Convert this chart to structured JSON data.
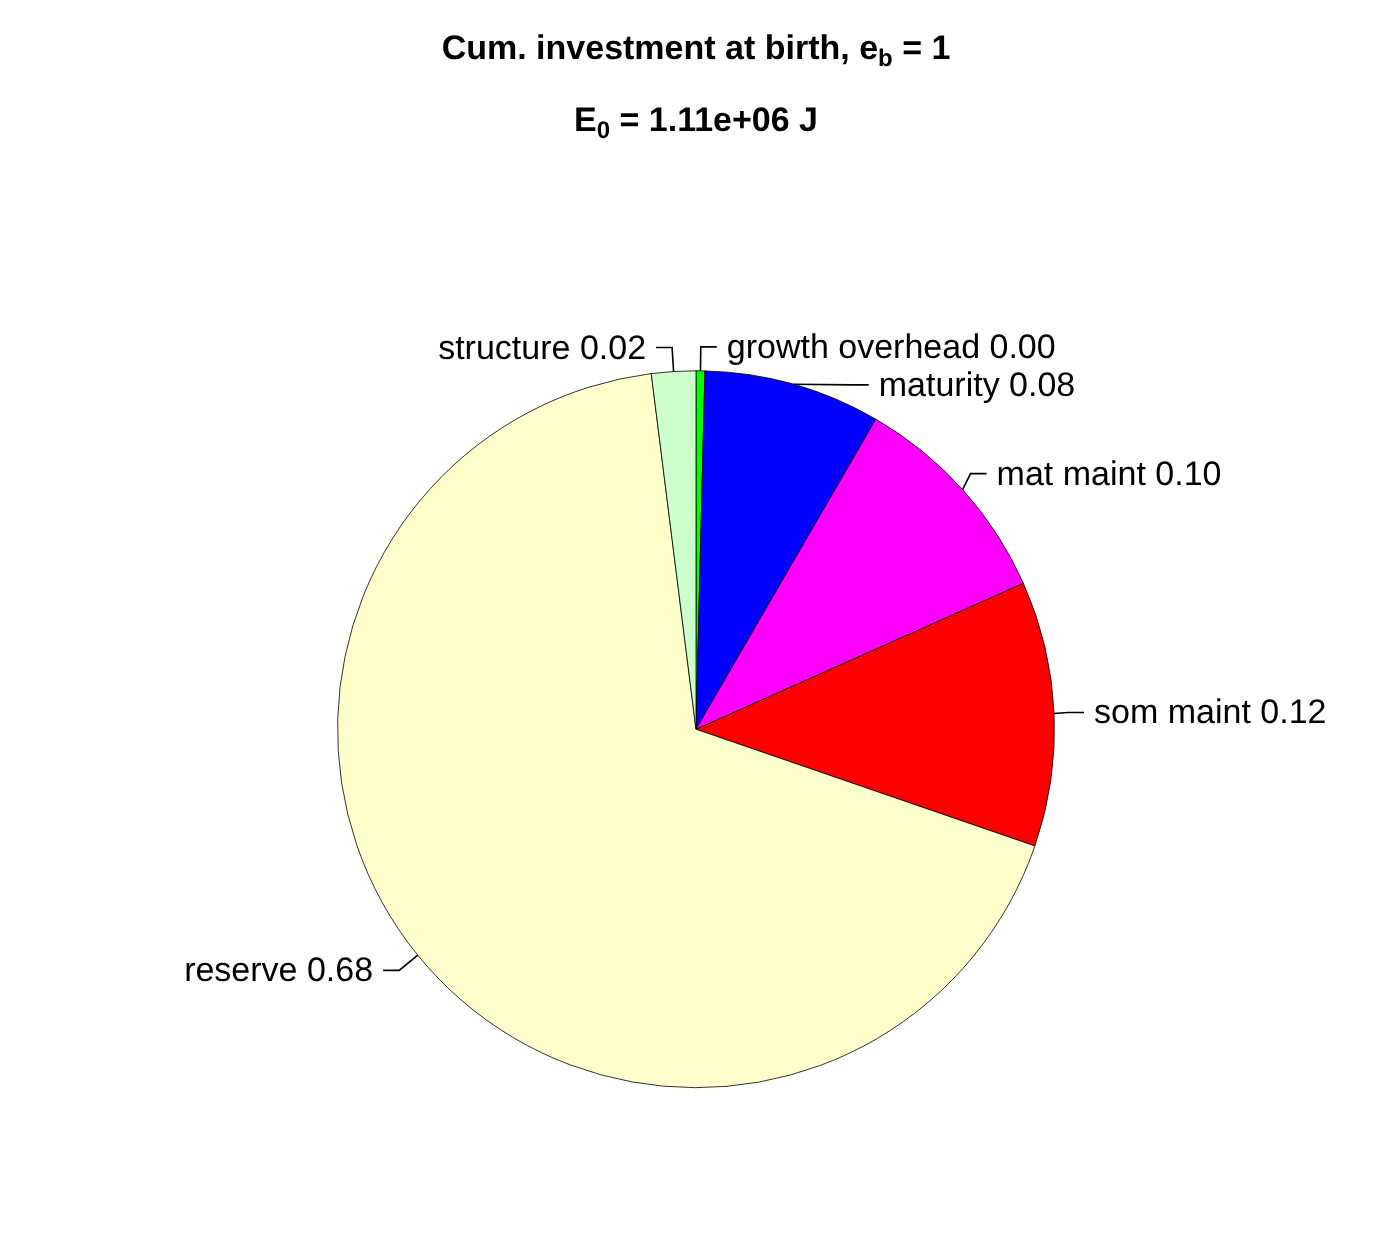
{
  "chart_data": {
    "type": "pie",
    "title": "Cum. investment at birth, e$_{b}$ = 1",
    "subtitle": "E$_{0}$ = 1.11e+06 J",
    "categories": [
      "growth overhead",
      "maturity",
      "mat maint",
      "som maint",
      "reserve",
      "structure"
    ],
    "values": [
      0.004,
      0.08,
      0.1,
      0.12,
      0.68,
      0.02
    ],
    "value_labels": [
      "0.00",
      "0.08",
      "0.10",
      "0.12",
      "0.68",
      "0.02"
    ],
    "colors": [
      "#00ff00",
      "#0000ff",
      "#ff00ff",
      "#ff0000",
      "#ffffcc",
      "#ccffcc"
    ],
    "legend": false
  }
}
